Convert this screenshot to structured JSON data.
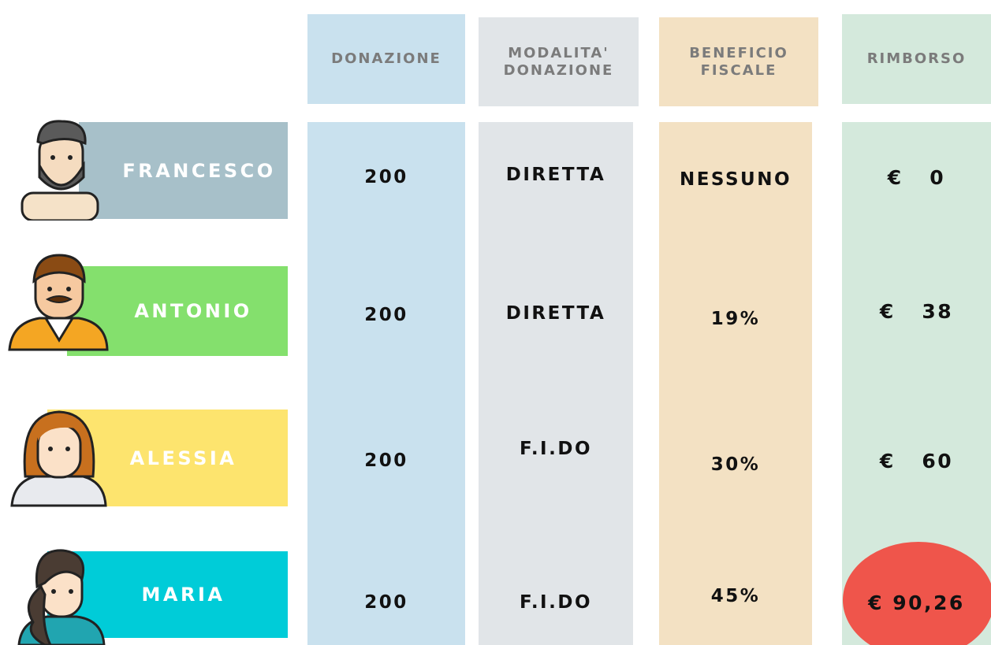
{
  "columns": [
    [
      "DONAZIONE"
    ],
    [
      "MODALITA'",
      "DONAZIONE"
    ],
    [
      "BENEFICIO",
      "FISCALE"
    ],
    [
      "RIMBORSO"
    ]
  ],
  "rows": [
    {
      "name": "FRANCESCO",
      "donation": "200",
      "mode": "DIRETTA",
      "benefit": "NESSUNO",
      "refund": "€   0"
    },
    {
      "name": "ANTONIO",
      "donation": "200",
      "mode": "DIRETTA",
      "benefit": "19%",
      "refund": "€   38"
    },
    {
      "name": "ALESSIA",
      "donation": "200",
      "mode": "F.I.DO",
      "benefit": "30%",
      "refund": "€   60"
    },
    {
      "name": "MARIA",
      "donation": "200",
      "mode": "F.I.DO",
      "benefit": "45%",
      "refund": "€ 90,26"
    }
  ]
}
